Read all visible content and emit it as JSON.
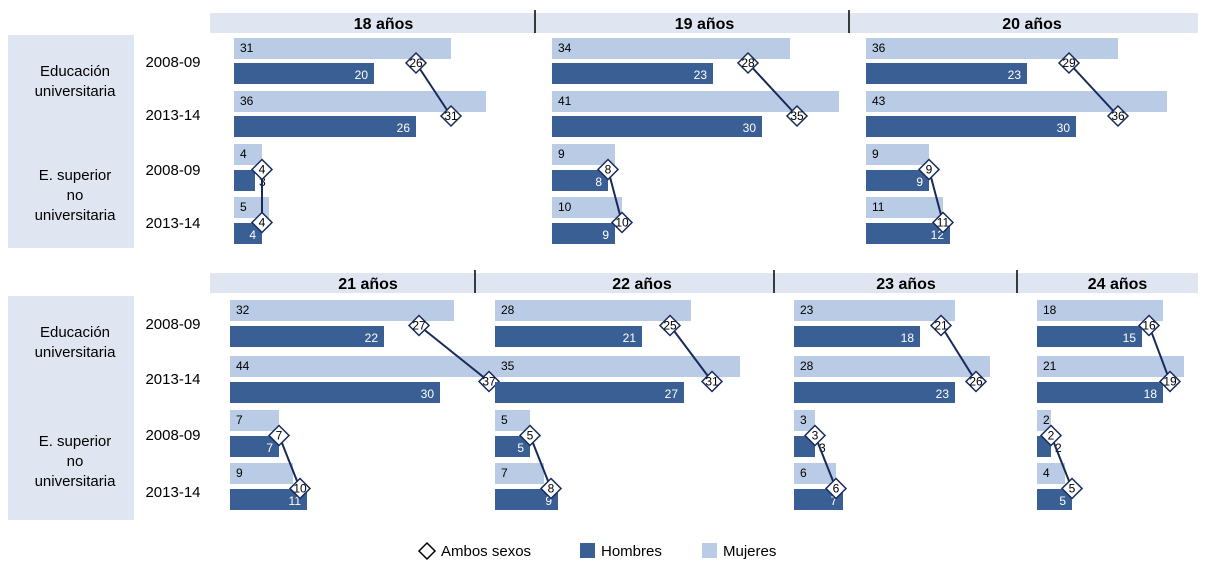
{
  "colors": {
    "mujeres": "#b9cbe5",
    "hombres": "#3a5f94",
    "ambos_marker": "#ffffff",
    "connector": "#172a5a",
    "header_bg": "#dfe6f1",
    "label_bg": "#dfe6f1"
  },
  "row_groups": [
    "Educación universitaria",
    "E. superior no universitaria"
  ],
  "row_group_lines": [
    [
      "Educación",
      "universitaria"
    ],
    [
      "E. superior",
      "no",
      "universitaria"
    ]
  ],
  "years": [
    "2008-09",
    "2013-14"
  ],
  "legend": {
    "ambos": "Ambos sexos",
    "hombres": "Hombres",
    "mujeres": "Mujeres"
  },
  "chart_data": {
    "type": "bar",
    "series_names": [
      "Mujeres",
      "Hombres",
      "Ambos sexos"
    ],
    "panels": [
      {
        "title": "18 años",
        "values": {
          "uni_2008": {
            "m": 31,
            "h": 20,
            "a": 26
          },
          "uni_2013": {
            "m": 36,
            "h": 26,
            "a": 31
          },
          "nouni_2008": {
            "m": 4,
            "h": 3,
            "a": 4
          },
          "nouni_2013": {
            "m": 5,
            "h": 4,
            "a": 4
          }
        }
      },
      {
        "title": "19 años",
        "values": {
          "uni_2008": {
            "m": 34,
            "h": 23,
            "a": 28
          },
          "uni_2013": {
            "m": 41,
            "h": 30,
            "a": 35
          },
          "nouni_2008": {
            "m": 9,
            "h": 8,
            "a": 8
          },
          "nouni_2013": {
            "m": 10,
            "h": 9,
            "a": 10
          }
        }
      },
      {
        "title": "20 años",
        "values": {
          "uni_2008": {
            "m": 36,
            "h": 23,
            "a": 29
          },
          "uni_2013": {
            "m": 43,
            "h": 30,
            "a": 36
          },
          "nouni_2008": {
            "m": 9,
            "h": 9,
            "a": 9
          },
          "nouni_2013": {
            "m": 11,
            "h": 12,
            "a": 11
          }
        }
      },
      {
        "title": "21 años",
        "values": {
          "uni_2008": {
            "m": 32,
            "h": 22,
            "a": 27
          },
          "uni_2013": {
            "m": 44,
            "h": 30,
            "a": 37
          },
          "nouni_2008": {
            "m": 7,
            "h": 7,
            "a": 7
          },
          "nouni_2013": {
            "m": 9,
            "h": 11,
            "a": 10
          }
        }
      },
      {
        "title": "22 años",
        "values": {
          "uni_2008": {
            "m": 28,
            "h": 21,
            "a": 25
          },
          "uni_2013": {
            "m": 35,
            "h": 27,
            "a": 31
          },
          "nouni_2008": {
            "m": 5,
            "h": 5,
            "a": 5
          },
          "nouni_2013": {
            "m": 7,
            "h": 9,
            "a": 8
          }
        }
      },
      {
        "title": "23 años",
        "values": {
          "uni_2008": {
            "m": 23,
            "h": 18,
            "a": 21
          },
          "uni_2013": {
            "m": 28,
            "h": 23,
            "a": 26
          },
          "nouni_2008": {
            "m": 3,
            "h": 3,
            "a": 3
          },
          "nouni_2013": {
            "m": 6,
            "h": 7,
            "a": 6
          }
        }
      },
      {
        "title": "24 años",
        "values": {
          "uni_2008": {
            "m": 18,
            "h": 15,
            "a": 16
          },
          "uni_2013": {
            "m": 21,
            "h": 18,
            "a": 19
          },
          "nouni_2008": {
            "m": 2,
            "h": 2,
            "a": 2
          },
          "nouni_2013": {
            "m": 4,
            "h": 5,
            "a": 5
          }
        }
      }
    ]
  }
}
